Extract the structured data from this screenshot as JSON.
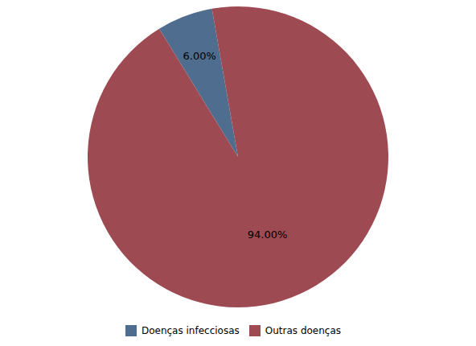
{
  "chart_data": {
    "type": "pie",
    "labels": [
      "Doenças infecciosas",
      "Outras doenças"
    ],
    "values": [
      6.0,
      94.0
    ],
    "value_labels": [
      "6.00%",
      "94.00%"
    ],
    "colors": [
      "#4f6d8f",
      "#9e4a52"
    ],
    "data_labels": true,
    "legend": "bottom"
  }
}
